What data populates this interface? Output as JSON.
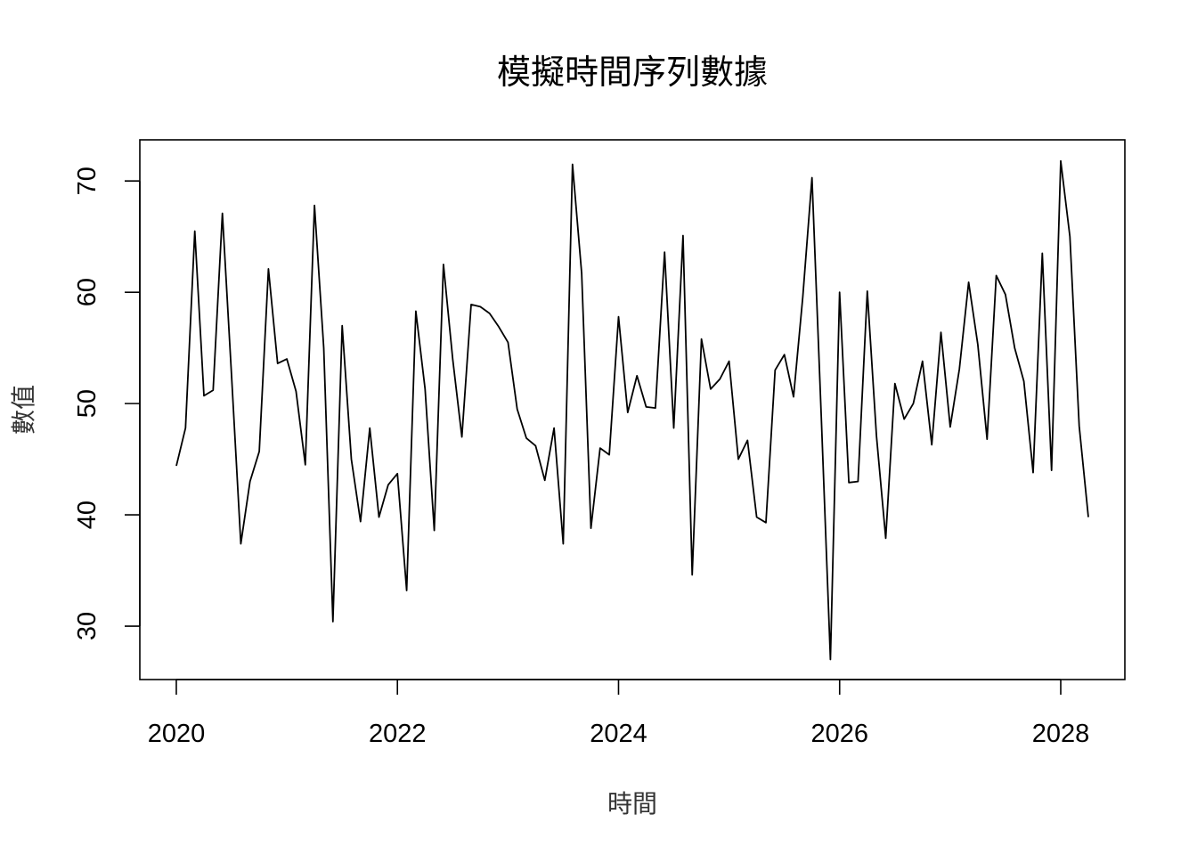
{
  "chart_data": {
    "type": "line",
    "title": "模擬時間序列數據",
    "xlabel": "時間",
    "ylabel": "數值",
    "xlim": [
      2019.67,
      2028.58
    ],
    "ylim": [
      25.2,
      73.7
    ],
    "x_ticks": [
      2020,
      2022,
      2024,
      2026,
      2028
    ],
    "x_tick_labels": [
      "2020",
      "2022",
      "2024",
      "2026",
      "2028"
    ],
    "y_ticks": [
      30,
      40,
      50,
      60,
      70
    ],
    "y_tick_labels": [
      "30",
      "40",
      "50",
      "60",
      "70"
    ],
    "grid": false,
    "frequency": "monthly",
    "start": "2020-01",
    "series": [
      {
        "values": [
          44.4,
          47.8,
          65.5,
          50.7,
          51.2,
          67.1,
          52.5,
          37.4,
          43.0,
          45.7,
          62.1,
          53.6,
          54.0,
          51.1,
          44.5,
          67.8,
          55.0,
          30.4,
          57.0,
          45.0,
          39.4,
          47.8,
          39.8,
          42.7,
          43.7,
          33.2,
          58.3,
          51.3,
          38.6,
          62.5,
          54.0,
          47.0,
          58.9,
          58.7,
          58.1,
          56.9,
          55.5,
          49.5,
          46.9,
          46.2,
          43.1,
          47.8,
          37.4,
          71.5,
          61.7,
          38.8,
          46.0,
          45.4,
          57.8,
          49.2,
          52.5,
          49.7,
          49.6,
          63.6,
          47.8,
          65.1,
          34.6,
          55.8,
          51.3,
          52.2,
          53.8,
          45.0,
          46.7,
          39.8,
          39.3,
          53.0,
          54.4,
          50.6,
          59.6,
          70.3,
          48.9,
          27.0,
          60.0,
          42.9,
          43.0,
          60.1,
          47.1,
          37.9,
          51.8,
          48.6,
          50.0,
          53.8,
          46.3,
          56.4,
          47.9,
          53.1,
          60.9,
          55.3,
          46.8,
          61.5,
          59.8,
          55.0,
          52.0,
          43.8,
          63.5,
          44.0,
          71.8,
          65.0,
          48.0,
          39.8
        ]
      }
    ]
  }
}
